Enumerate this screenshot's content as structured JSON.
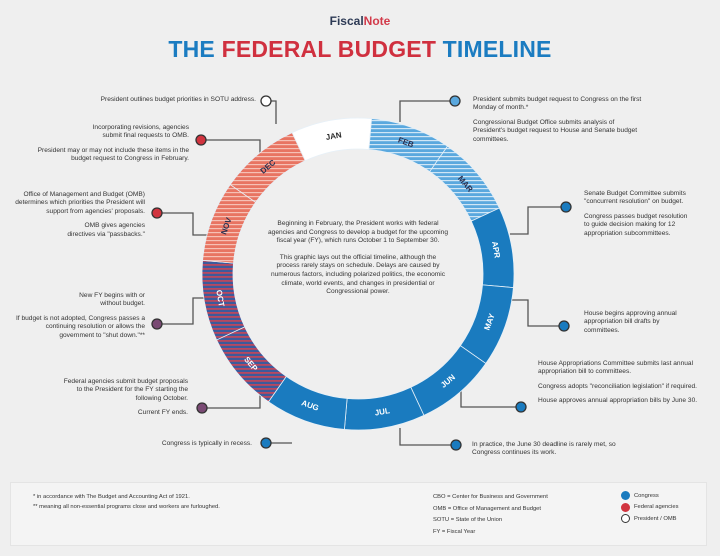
{
  "brand": {
    "part1": "Fiscal",
    "part2": "Note"
  },
  "title": {
    "part1": "THE ",
    "part2": "FEDERAL BUDGET ",
    "part3": "TIMELINE"
  },
  "colors": {
    "congress": "#1a7bbf",
    "federal_agencies": "#d1343f",
    "president_omb": "#ffffff",
    "light_blue": "#5aa8de",
    "salmon": "#e87462",
    "navy": "#3c5a9c",
    "rose": "#b8485f"
  },
  "months": [
    {
      "label": "JAN",
      "fill": "white"
    },
    {
      "label": "FEB",
      "fill": "light-blue-striped"
    },
    {
      "label": "MAR",
      "fill": "light-blue-striped"
    },
    {
      "label": "APR",
      "fill": "blue"
    },
    {
      "label": "MAY",
      "fill": "blue"
    },
    {
      "label": "JUN",
      "fill": "blue"
    },
    {
      "label": "JUL",
      "fill": "blue"
    },
    {
      "label": "AUG",
      "fill": "blue"
    },
    {
      "label": "SEP",
      "fill": "blue-red-striped"
    },
    {
      "label": "OCT",
      "fill": "blue-red-striped"
    },
    {
      "label": "NOV",
      "fill": "salmon-striped"
    },
    {
      "label": "DEC",
      "fill": "salmon-striped"
    }
  ],
  "center": {
    "p1": "Beginning in February, the President works with federal agencies and Congress to develop a budget for the upcoming fiscal year (FY), which runs October 1 to September 30.",
    "p2": "This graphic lays out the official timeline, although the process rarely stays on schedule. Delays are caused by numerous factors, including polarized politics, the economic climate, world events, and changes in presidential or Congressional power."
  },
  "callouts": {
    "jan": {
      "actor": "president",
      "p1": "President outlines budget priorities in SOTU address."
    },
    "dec": {
      "actor": "federal-agencies",
      "p1": "Incorporating revisions, agencies submit final requests to OMB.",
      "p2": "President may or may not include these items in the budget request to Congress in February."
    },
    "nov": {
      "actor": "federal-agencies",
      "p1": "Office of Management and Budget (OMB) determines which priorities the President will support from agencies' proposals.",
      "p2": "OMB gives agencies directives via \"passbacks.\""
    },
    "oct": {
      "actor": "mixed",
      "p1": "New FY begins with or without budget.",
      "p2": "If budget is not adopted, Congress passes a continuing resolution or allows the government to \"shut down.\"**"
    },
    "sep": {
      "actor": "mixed",
      "p1": "Federal agencies submit budget proposals to the President for the FY starting the following October.",
      "p2": "Current FY ends."
    },
    "aug": {
      "actor": "congress",
      "p1": "Congress is typically in recess."
    },
    "feb": {
      "actor": "president-congress",
      "p1": "President submits budget request to Congress on the first Monday of month.*",
      "p2": "Congressional Budget Office submits analysis of President's budget request to House and Senate budget committees."
    },
    "apr": {
      "actor": "congress",
      "p1": "Senate Budget Committee submits \"concurrent resolution\" on budget.",
      "p2": "Congress passes budget resolution to guide decision making for 12 appropriation subcommittees."
    },
    "may": {
      "actor": "congress",
      "p1": "House begins approving annual appropriation bill drafts by committees."
    },
    "jun": {
      "actor": "congress",
      "p1": "House Appropriations Committee submits last annual appropriation bill to committees.",
      "p2": "Congress adopts \"reconciliation legislation\" if required.",
      "p3": "House approves annual appropriation bills by June 30."
    },
    "jul": {
      "actor": "congress",
      "p1": "In practice, the June 30 deadline is rarely met, so Congress continues its work."
    }
  },
  "footer": {
    "note1": "* in accordance with The Budget and Accounting Act of 1921.",
    "note2": "** meaning all non-essential programs close and workers are furloughed.",
    "abbr": [
      "CBO = Center for Business and Government",
      "OMB = Office of Management and Budget",
      "SOTU = State of the Union",
      "FY = Fiscal Year"
    ],
    "legend": [
      {
        "label": "Congress",
        "color": "#1a7bbf"
      },
      {
        "label": "Federal agencies",
        "color": "#d1343f"
      },
      {
        "label": "President / OMB",
        "color": "#ffffff"
      }
    ]
  }
}
